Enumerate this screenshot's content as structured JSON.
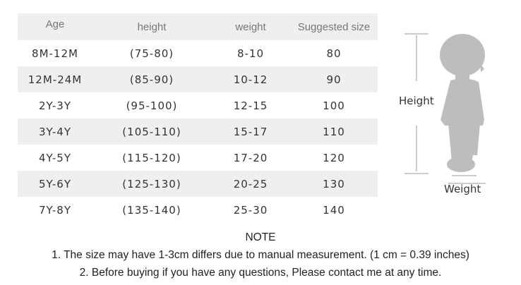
{
  "table": {
    "headers": [
      "Age",
      "height",
      "weight",
      "Suggested size"
    ],
    "rows": [
      [
        "8M-12M",
        "(75-80)",
        "8-10",
        "80"
      ],
      [
        "12M-24M",
        "(85-90)",
        "10-12",
        "90"
      ],
      [
        "2Y-3Y",
        "(95-100)",
        "12-15",
        "100"
      ],
      [
        "3Y-4Y",
        "(105-110)",
        "15-17",
        "110"
      ],
      [
        "4Y-5Y",
        "(115-120)",
        "17-20",
        "120"
      ],
      [
        "5Y-6Y",
        "(125-130)",
        "20-25",
        "130"
      ],
      [
        "7Y-8Y",
        "(135-140)",
        "25-30",
        "140"
      ]
    ]
  },
  "figure": {
    "height_label": "Height",
    "weight_label": "Weight",
    "silhouette_color": "#bdbdbd",
    "row_shade_color": "#efefef"
  },
  "note": {
    "title": "NOTE",
    "lines": [
      "1. The size may have 1-3cm differs due to manual measurement. (1 cm = 0.39 inches)",
      "2. Before buying if you have any questions, Please contact me at any time."
    ]
  }
}
